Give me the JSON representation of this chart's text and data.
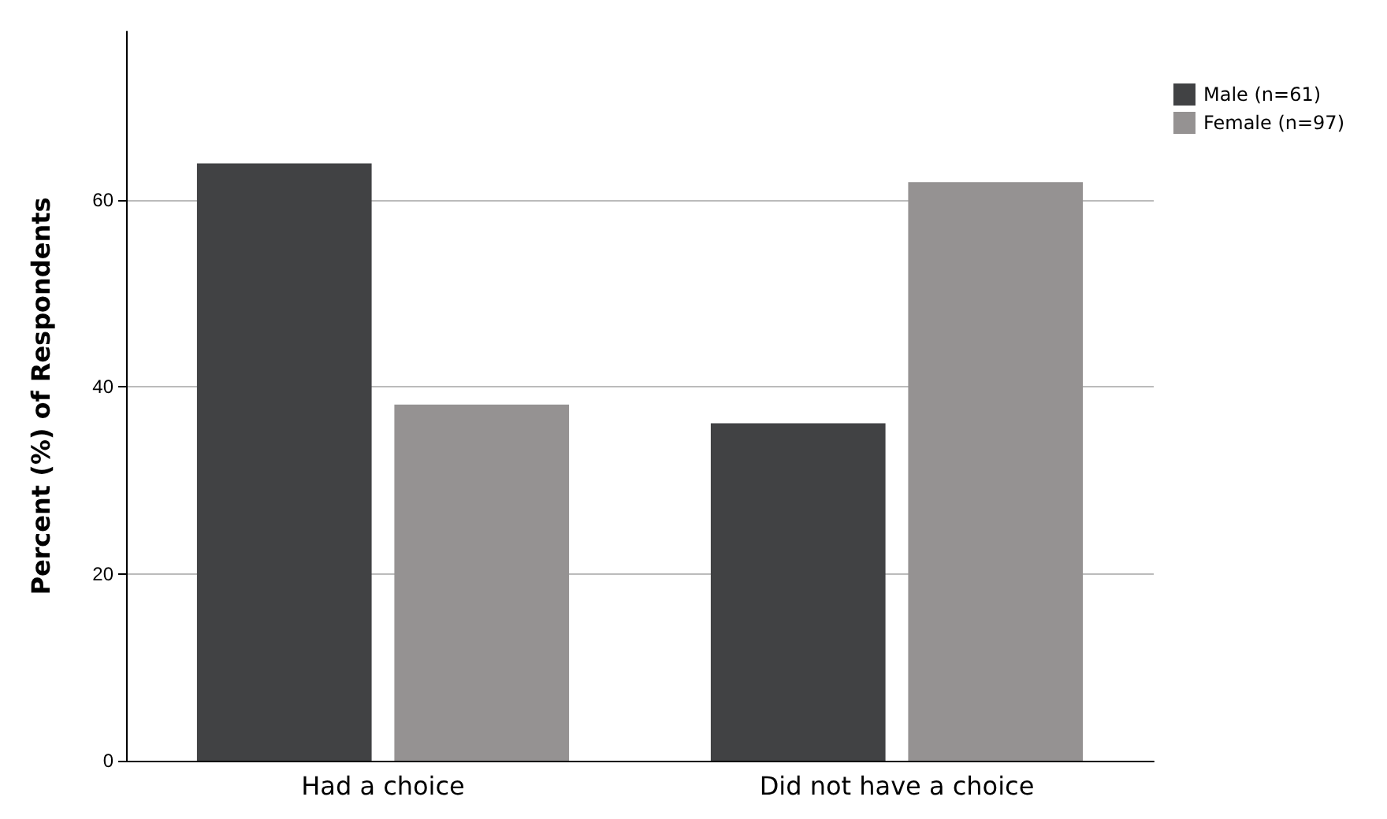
{
  "chart_data": {
    "type": "bar",
    "ylabel": "Percent (%) of Respondents",
    "categories": [
      "Had a choice",
      "Did not have a choice"
    ],
    "series": [
      {
        "name": "Male (n=61)",
        "color": "#414244",
        "values": [
          63.9,
          36.1
        ]
      },
      {
        "name": "Female (n=97)",
        "color": "#959292",
        "values": [
          38.1,
          61.9
        ]
      }
    ],
    "ylim": [
      0,
      78
    ],
    "yticks": [
      0,
      20,
      40,
      60
    ],
    "grid": "y",
    "legend": "top right"
  }
}
